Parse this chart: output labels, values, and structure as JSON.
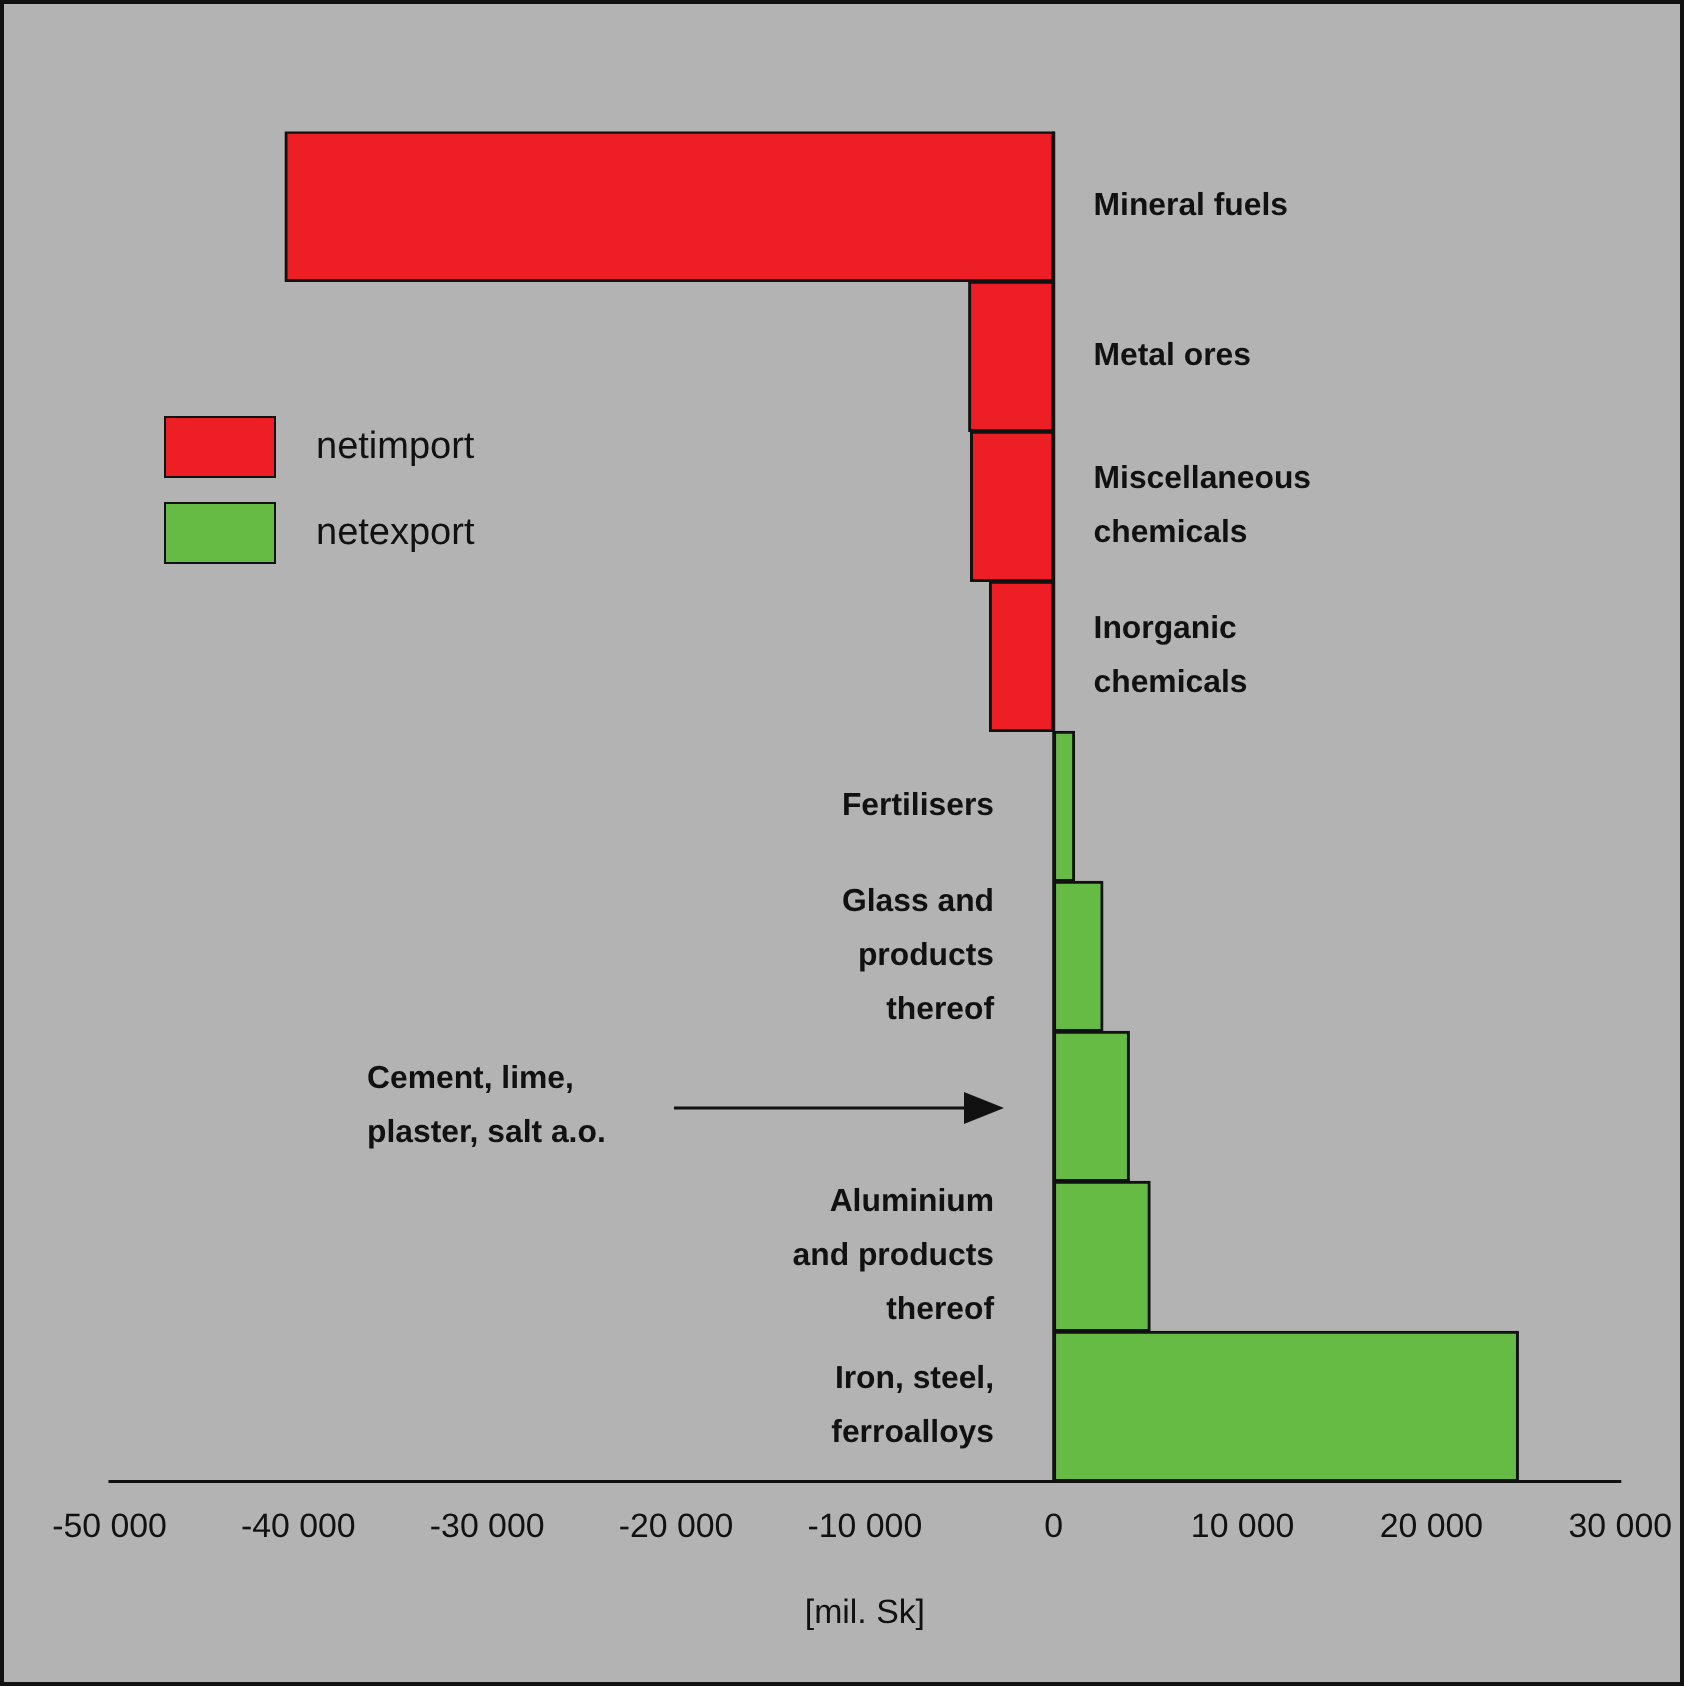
{
  "chart_data": {
    "type": "bar",
    "orientation": "horizontal",
    "stacked": true,
    "xlabel": "[mil. Sk]",
    "categories": [
      "Mineral fuels",
      "Metal ores",
      "Miscellaneous chemicals",
      "Inorganic chemicals",
      "Fertilisers",
      "Glass and products thereof",
      "Cement, lime, plaster, salt a.o.",
      "Aluminium and products thereof",
      "Iron, steel, ferroalloys"
    ],
    "series": [
      {
        "name": "netimport",
        "color": "#ee1f24",
        "values": [
          -40700,
          -4500,
          -4400,
          -3400,
          null,
          null,
          null,
          null,
          null
        ]
      },
      {
        "name": "netexport",
        "color": "#66bb44",
        "values": [
          null,
          null,
          null,
          null,
          1100,
          2600,
          4000,
          5100,
          24600
        ]
      }
    ],
    "xlim": [
      -50000,
      30000
    ],
    "xticks": [
      {
        "value": -50000,
        "label": "-50 000"
      },
      {
        "value": -40000,
        "label": "-40 000"
      },
      {
        "value": -30000,
        "label": "-30 000"
      },
      {
        "value": -20000,
        "label": "-20 000"
      },
      {
        "value": -10000,
        "label": "-10 000"
      },
      0,
      {
        "value": 10000,
        "label": "10 000"
      },
      {
        "value": 20000,
        "label": "20 000"
      },
      {
        "value": 30000,
        "label": "30 000"
      }
    ],
    "grid": false,
    "legend": "left"
  }
}
